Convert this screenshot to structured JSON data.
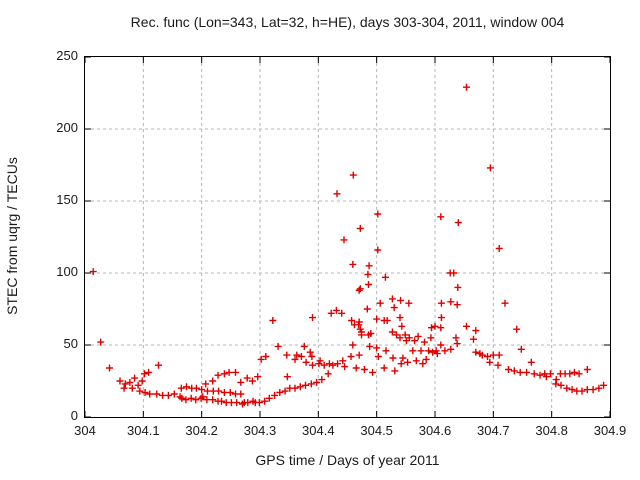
{
  "chart_data": {
    "type": "scatter",
    "title": "Rec. func (Lon=343, Lat=32, h=HE), days 303-304, 2011, window 004",
    "xlabel": "GPS time / Days of year 2011",
    "ylabel": "STEC from uqrg / TECUs",
    "xlim": [
      304,
      304.9
    ],
    "ylim": [
      0,
      250
    ],
    "grid": true,
    "legend": "none",
    "marker": "plus",
    "marker_color": "#e00000",
    "grid_color": "#b4b4b4",
    "axis_color": "#000000",
    "xticks": [
      {
        "value": 304.0,
        "label": "304"
      },
      {
        "value": 304.1,
        "label": "304.1"
      },
      {
        "value": 304.2,
        "label": "304.2"
      },
      {
        "value": 304.3,
        "label": "304.3"
      },
      {
        "value": 304.4,
        "label": "304.4"
      },
      {
        "value": 304.5,
        "label": "304.5"
      },
      {
        "value": 304.6,
        "label": "304.6"
      },
      {
        "value": 304.7,
        "label": "304.7"
      },
      {
        "value": 304.8,
        "label": "304.8"
      },
      {
        "value": 304.9,
        "label": "304.9"
      }
    ],
    "yticks": [
      {
        "value": 0,
        "label": "0"
      },
      {
        "value": 50,
        "label": "50"
      },
      {
        "value": 100,
        "label": "100"
      },
      {
        "value": 150,
        "label": "150"
      },
      {
        "value": 200,
        "label": "200"
      },
      {
        "value": 250,
        "label": "250"
      }
    ],
    "points": [
      [
        304.014,
        101
      ],
      [
        304.027,
        52
      ],
      [
        304.042,
        34
      ],
      [
        304.06,
        25
      ],
      [
        304.067,
        20
      ],
      [
        304.069,
        23
      ],
      [
        304.077,
        24
      ],
      [
        304.081,
        20
      ],
      [
        304.085,
        27
      ],
      [
        304.091,
        22
      ],
      [
        304.094,
        18
      ],
      [
        304.098,
        25
      ],
      [
        304.102,
        30
      ],
      [
        304.103,
        17
      ],
      [
        304.109,
        31
      ],
      [
        304.111,
        16
      ],
      [
        304.123,
        16
      ],
      [
        304.126,
        36
      ],
      [
        304.133,
        15
      ],
      [
        304.143,
        15
      ],
      [
        304.153,
        16
      ],
      [
        304.163,
        14
      ],
      [
        304.166,
        13
      ],
      [
        304.173,
        12
      ],
      [
        304.182,
        13
      ],
      [
        304.19,
        12
      ],
      [
        304.199,
        13
      ],
      [
        304.202,
        14
      ],
      [
        304.209,
        12
      ],
      [
        304.219,
        12
      ],
      [
        304.228,
        11
      ],
      [
        304.234,
        11
      ],
      [
        304.242,
        10
      ],
      [
        304.251,
        10
      ],
      [
        304.26,
        10
      ],
      [
        304.27,
        9
      ],
      [
        304.273,
        10
      ],
      [
        304.279,
        10
      ],
      [
        304.288,
        11
      ],
      [
        304.292,
        10
      ],
      [
        304.299,
        10
      ],
      [
        304.165,
        20
      ],
      [
        304.174,
        21
      ],
      [
        304.183,
        20
      ],
      [
        304.191,
        20
      ],
      [
        304.2,
        19
      ],
      [
        304.21,
        18
      ],
      [
        304.22,
        18
      ],
      [
        304.229,
        18
      ],
      [
        304.239,
        17
      ],
      [
        304.249,
        17
      ],
      [
        304.258,
        16
      ],
      [
        304.267,
        16
      ],
      [
        304.207,
        23
      ],
      [
        304.219,
        25
      ],
      [
        304.228,
        29
      ],
      [
        304.239,
        30
      ],
      [
        304.247,
        31
      ],
      [
        304.258,
        31
      ],
      [
        304.267,
        24
      ],
      [
        304.278,
        27
      ],
      [
        304.287,
        25
      ],
      [
        304.296,
        28
      ],
      [
        304.308,
        11
      ],
      [
        304.316,
        13
      ],
      [
        304.325,
        15
      ],
      [
        304.334,
        17
      ],
      [
        304.343,
        18
      ],
      [
        304.351,
        20
      ],
      [
        304.36,
        20
      ],
      [
        304.369,
        21
      ],
      [
        304.378,
        22
      ],
      [
        304.388,
        23
      ],
      [
        304.397,
        24
      ],
      [
        304.406,
        26
      ],
      [
        304.302,
        40
      ],
      [
        304.31,
        42
      ],
      [
        304.322,
        67
      ],
      [
        304.331,
        49
      ],
      [
        304.346,
        43
      ],
      [
        304.347,
        28
      ],
      [
        304.36,
        40
      ],
      [
        304.363,
        43
      ],
      [
        304.371,
        42
      ],
      [
        304.376,
        49
      ],
      [
        304.379,
        38
      ],
      [
        304.386,
        45
      ],
      [
        304.389,
        42
      ],
      [
        304.39,
        36
      ],
      [
        304.39,
        69
      ],
      [
        304.401,
        37
      ],
      [
        304.403,
        39
      ],
      [
        304.41,
        36
      ],
      [
        304.417,
        30
      ],
      [
        304.419,
        37
      ],
      [
        304.422,
        72
      ],
      [
        304.425,
        36
      ],
      [
        304.431,
        74
      ],
      [
        304.432,
        155
      ],
      [
        304.433,
        37
      ],
      [
        304.44,
        72
      ],
      [
        304.442,
        39
      ],
      [
        304.444,
        123
      ],
      [
        304.445,
        35
      ],
      [
        304.456,
        42
      ],
      [
        304.457,
        67
      ],
      [
        304.459,
        50
      ],
      [
        304.459,
        106
      ],
      [
        304.46,
        168
      ],
      [
        304.462,
        64
      ],
      [
        304.465,
        34
      ],
      [
        304.469,
        64
      ],
      [
        304.47,
        43
      ],
      [
        304.47,
        66
      ],
      [
        304.47,
        88
      ],
      [
        304.472,
        61
      ],
      [
        304.472,
        89
      ],
      [
        304.472,
        131
      ],
      [
        304.474,
        57
      ],
      [
        304.474,
        59
      ],
      [
        304.479,
        33
      ],
      [
        304.484,
        75
      ],
      [
        304.485,
        99
      ],
      [
        304.486,
        57
      ],
      [
        304.486,
        92
      ],
      [
        304.487,
        105
      ],
      [
        304.488,
        49
      ],
      [
        304.49,
        58
      ],
      [
        304.493,
        31
      ],
      [
        304.5,
        48
      ],
      [
        304.5,
        68
      ],
      [
        304.502,
        141
      ],
      [
        304.502,
        116
      ],
      [
        304.503,
        42
      ],
      [
        304.506,
        79
      ],
      [
        304.513,
        34
      ],
      [
        304.513,
        67
      ],
      [
        304.515,
        97
      ],
      [
        304.516,
        46
      ],
      [
        304.518,
        67
      ],
      [
        304.527,
        59
      ],
      [
        304.527,
        82
      ],
      [
        304.528,
        41
      ],
      [
        304.53,
        76
      ],
      [
        304.531,
        32
      ],
      [
        304.534,
        57
      ],
      [
        304.54,
        55
      ],
      [
        304.54,
        69
      ],
      [
        304.541,
        81
      ],
      [
        304.542,
        37
      ],
      [
        304.543,
        63
      ],
      [
        304.545,
        41
      ],
      [
        304.549,
        57
      ],
      [
        304.551,
        53
      ],
      [
        304.553,
        38
      ],
      [
        304.555,
        79
      ],
      [
        304.556,
        55
      ],
      [
        304.562,
        46
      ],
      [
        304.565,
        53
      ],
      [
        304.568,
        39
      ],
      [
        304.571,
        56
      ],
      [
        304.576,
        46
      ],
      [
        304.579,
        37
      ],
      [
        304.582,
        52
      ],
      [
        304.585,
        40
      ],
      [
        304.589,
        46
      ],
      [
        304.593,
        55
      ],
      [
        304.594,
        62
      ],
      [
        304.596,
        45
      ],
      [
        304.6,
        63
      ],
      [
        304.602,
        46
      ],
      [
        304.604,
        44
      ],
      [
        304.61,
        50
      ],
      [
        304.61,
        62
      ],
      [
        304.61,
        139
      ],
      [
        304.611,
        69
      ],
      [
        304.611,
        79
      ],
      [
        304.617,
        46
      ],
      [
        304.626,
        100
      ],
      [
        304.627,
        47
      ],
      [
        304.627,
        80
      ],
      [
        304.632,
        100
      ],
      [
        304.636,
        55
      ],
      [
        304.638,
        51
      ],
      [
        304.638,
        78
      ],
      [
        304.639,
        90
      ],
      [
        304.64,
        135
      ],
      [
        304.654,
        63
      ],
      [
        304.654,
        229
      ],
      [
        304.666,
        54
      ],
      [
        304.67,
        45
      ],
      [
        304.67,
        60
      ],
      [
        304.677,
        44
      ],
      [
        304.681,
        43
      ],
      [
        304.69,
        42
      ],
      [
        304.694,
        38
      ],
      [
        304.695,
        173
      ],
      [
        304.7,
        43
      ],
      [
        304.708,
        36
      ],
      [
        304.71,
        43
      ],
      [
        304.71,
        117
      ],
      [
        304.72,
        79
      ],
      [
        304.726,
        33
      ],
      [
        304.736,
        32
      ],
      [
        304.74,
        61
      ],
      [
        304.746,
        31
      ],
      [
        304.748,
        47
      ],
      [
        304.757,
        31
      ],
      [
        304.765,
        38
      ],
      [
        304.77,
        30
      ],
      [
        304.78,
        29
      ],
      [
        304.788,
        30
      ],
      [
        304.791,
        28
      ],
      [
        304.798,
        30
      ],
      [
        304.807,
        23
      ],
      [
        304.808,
        26
      ],
      [
        304.815,
        30
      ],
      [
        304.816,
        22
      ],
      [
        304.823,
        30
      ],
      [
        304.826,
        20
      ],
      [
        304.831,
        30
      ],
      [
        304.835,
        19
      ],
      [
        304.839,
        31
      ],
      [
        304.843,
        18
      ],
      [
        304.847,
        30
      ],
      [
        304.852,
        18
      ],
      [
        304.861,
        33
      ],
      [
        304.861,
        19
      ],
      [
        304.871,
        19
      ],
      [
        304.881,
        20
      ],
      [
        304.889,
        22
      ]
    ]
  }
}
